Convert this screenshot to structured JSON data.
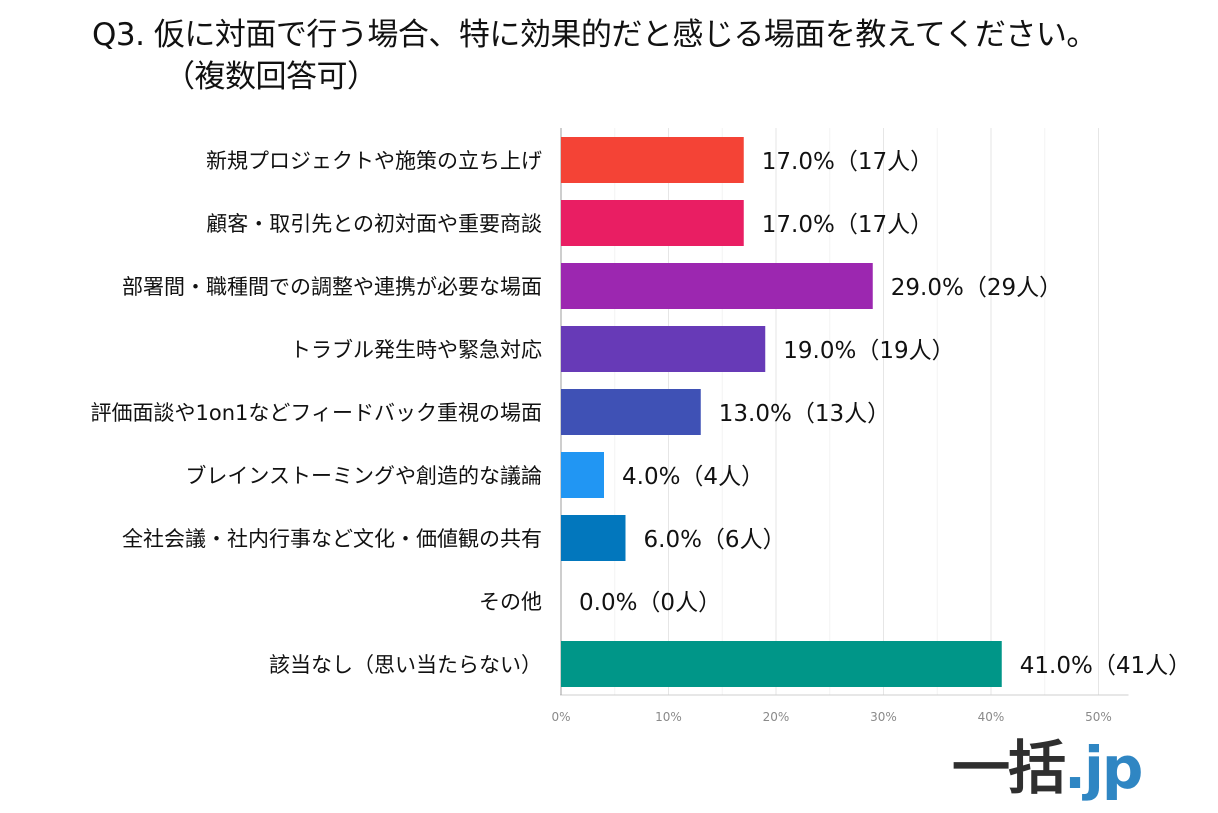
{
  "title": {
    "line1": "Q3.  仮に対面で行う場合、特に効果的だと感じる場面を教えてください。",
    "line2": "（複数回答可）"
  },
  "logo": {
    "kanji": "一括",
    "suffix": ".jp"
  },
  "chart_data": {
    "type": "bar",
    "orientation": "horizontal",
    "title": "Q3.  仮に対面で行う場合、特に効果的だと感じる場面を教えてください。（複数回答可）",
    "xlabel": "",
    "ylabel": "",
    "xlim": [
      0,
      50
    ],
    "x_ticks": [
      "0%",
      "10%",
      "20%",
      "30%",
      "40%",
      "50%"
    ],
    "grid": true,
    "legend": "none",
    "categories": [
      "新規プロジェクトや施策の立ち上げ",
      "顧客・取引先との初対面や重要商談",
      "部署間・職種間での調整や連携が必要な場面",
      "トラブル発生時や緊急対応",
      "評価面談や1on1などフィードバック重視の場面",
      "ブレインストーミングや創造的な議論",
      "全社会議・社内行事など文化・価値観の共有",
      "その他",
      "該当なし（思い当たらない）"
    ],
    "values": [
      17.0,
      17.0,
      29.0,
      19.0,
      13.0,
      4.0,
      6.0,
      0.0,
      41.0
    ],
    "value_labels": [
      "17.0%（17人）",
      "17.0%（17人）",
      "29.0%（29人）",
      "19.0%（19人）",
      "13.0%（13人）",
      "4.0%（4人）",
      "6.0%（6人）",
      "0.0%（0人）",
      "41.0%（41人）"
    ],
    "colors": [
      "#f44336",
      "#e91e63",
      "#9c27b0",
      "#673ab7",
      "#3f51b5",
      "#2196f3",
      "#0277bd",
      "#00bcd4",
      "#009688"
    ]
  }
}
